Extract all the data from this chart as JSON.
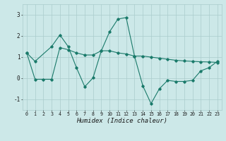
{
  "line1_x": [
    0,
    1,
    3,
    4,
    5,
    6,
    7,
    8,
    9,
    10,
    11,
    12,
    13,
    14,
    15,
    16,
    17,
    18,
    19,
    20,
    21,
    22,
    23
  ],
  "line1_y": [
    1.2,
    0.8,
    1.5,
    2.05,
    1.5,
    0.5,
    -0.4,
    0.02,
    1.3,
    2.2,
    2.8,
    2.87,
    1.05,
    -0.35,
    -1.2,
    -0.5,
    -0.1,
    -0.15,
    -0.15,
    -0.1,
    0.35,
    0.5,
    0.8
  ],
  "line2_x": [
    0,
    1,
    2,
    3,
    4,
    5,
    6,
    7,
    8,
    9,
    10,
    11,
    12,
    13,
    14,
    15,
    16,
    17,
    18,
    19,
    20,
    21,
    22,
    23
  ],
  "line2_y": [
    1.2,
    -0.05,
    -0.05,
    -0.05,
    1.45,
    1.35,
    1.2,
    1.1,
    1.1,
    1.3,
    1.3,
    1.2,
    1.15,
    1.05,
    1.05,
    1.0,
    0.95,
    0.9,
    0.85,
    0.82,
    0.8,
    0.78,
    0.77,
    0.75
  ],
  "line_color": "#1a7a6a",
  "bg_color": "#cce8e8",
  "grid_color": "#aacccc",
  "xlabel": "Humidex (Indice chaleur)",
  "ylim": [
    -1.5,
    3.5
  ],
  "xlim": [
    -0.5,
    23.5
  ],
  "yticks": [
    -1,
    0,
    1,
    2,
    3
  ],
  "xticks": [
    0,
    1,
    2,
    3,
    4,
    5,
    6,
    7,
    8,
    9,
    10,
    11,
    12,
    13,
    14,
    15,
    16,
    17,
    18,
    19,
    20,
    21,
    22,
    23
  ],
  "xtick_labels": [
    "0",
    "1",
    "2",
    "3",
    "4",
    "5",
    "6",
    "7",
    "8",
    "9",
    "10",
    "11",
    "12",
    "13",
    "14",
    "15",
    "16",
    "17",
    "18",
    "19",
    "20",
    "21",
    "22",
    "23"
  ]
}
